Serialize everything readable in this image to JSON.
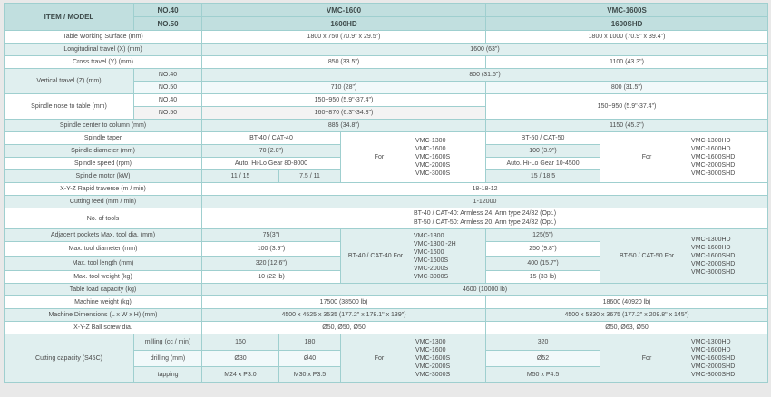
{
  "header": {
    "item_model": "ITEM / MODEL",
    "no40": "NO.40",
    "no50": "NO.50",
    "model_a": "VMC-1600",
    "model_a_hd": "1600HD",
    "model_b": "VMC-1600S",
    "model_b_hd": "1600SHD"
  },
  "rows": {
    "table_surface": {
      "label": "Table Working Surface (mm)",
      "a": "1800 x 750 (70.9\" x 29.5\")",
      "b": "1800 x 1000 (70.9\" x 39.4\")"
    },
    "longitudinal": {
      "label": "Longitudinal travel (X) (mm)",
      "value": "1600 (63\")"
    },
    "cross": {
      "label": "Cross travel (Y) (mm)",
      "a": "850 (33.5\")",
      "b": "1100 (43.3\")"
    },
    "vertical": {
      "label": "Vertical travel (Z) (mm)",
      "sub40": "NO.40",
      "sub50": "NO.50",
      "v40": "800 (31.5\")",
      "a50": "710 (28\")",
      "b50": "800 (31.5\")"
    },
    "nose": {
      "label": "Spindle nose to table (mm)",
      "sub40": "NO.40",
      "sub50": "NO.50",
      "a40": "150~950 (5.9\"-37.4\")",
      "a50": "160~870 (6.3\"-34.3\")",
      "b": "150~950 (5.9\"-37.4\")"
    },
    "center": {
      "label": "Spindle center to column (mm)",
      "a": "885 (34.8\")",
      "b": "1150 (45.3\")"
    },
    "taper": {
      "label": "Spindle taper",
      "a": "BT-40 / CAT-40",
      "b": "BT-50 / CAT-50"
    },
    "diameter": {
      "label": "Spindle diameter (mm)",
      "a": "70 (2.8\")",
      "b": "100 (3.9\")"
    },
    "speed": {
      "label": "Spindle speed (rpm)",
      "a": "Auto. Hi-Lo Gear 80-8000",
      "b": "Auto. Hi-Lo Gear 10-4500"
    },
    "motor": {
      "label": "Spindle motor (kW)",
      "a1": "11 / 15",
      "a2": "7.5 / 11",
      "b": "15 / 18.5"
    },
    "spindle_for": {
      "a_label": "For",
      "a_models": [
        "VMC-1300",
        "VMC-1600",
        "VMC-1600S",
        "VMC-2000S",
        "VMC-3000S"
      ],
      "b_label": "For",
      "b_models": [
        "VMC-1300HD",
        "VMC-1600HD",
        "VMC-1600SHD",
        "VMC-2000SHD",
        "VMC-3000SHD"
      ]
    },
    "rapid": {
      "label": "X-Y-Z Rapid traverse (m / min)",
      "value": "18-18-12"
    },
    "feed": {
      "label": "Cutting feed (mm / min)",
      "value": "1-12000"
    },
    "tools": {
      "label": "No. of tools",
      "line1": "BT-40 / CAT-40: Armless 24, Arm type 24/32 (Opt.)",
      "line2": "BT-50 / CAT-50: Armless 20, Arm type 24/32 (Opt.)"
    },
    "adjacent": {
      "label": "Adjacent pockets Max. tool dia. (mm)",
      "a": "75(3\")",
      "b": "125(5\")"
    },
    "tool_dia": {
      "label": "Max. tool diameter (mm)",
      "a": "100 (3.9\")",
      "b": "250 (9.8\")"
    },
    "tool_len": {
      "label": "Max. tool length (mm)",
      "a": "320 (12.6\")",
      "b": "400 (15.7\")"
    },
    "tool_wt": {
      "label": "Max. tool weight (kg)",
      "a": "10 (22 lb)",
      "b": "15 (33 lb)"
    },
    "tool_for": {
      "a_label": "BT-40 / CAT-40 For",
      "a_models": [
        "VMC-1300",
        "VMC-1300 -2H",
        "VMC-1600",
        "VMC-1600S",
        "VMC-2000S",
        "VMC-3000S"
      ],
      "b_label": "BT-50 / CAT-50 For",
      "b_models": [
        "VMC-1300HD",
        "VMC-1600HD",
        "VMC-1600SHD",
        "VMC-2000SHD",
        "VMC-3000SHD"
      ]
    },
    "table_load": {
      "label": "Table load capacity (kg)",
      "value": "4600 (10000 lb)"
    },
    "weight": {
      "label": "Machine weight (kg)",
      "a": "17500 (38500 lb)",
      "b": "18600 (40920 lb)"
    },
    "dimensions": {
      "label": "Machine Dimensions (L x W x H) (mm)",
      "a": "4500 x 4525 x 3535 (177.2\" x 178.1\" x 139\")",
      "b": "4500 x 5330 x 3675 (177.2\" x 209.8\" x 145\")"
    },
    "ballscrew": {
      "label": "X-Y-Z Ball screw dia.",
      "a": "Ø50, Ø50, Ø50",
      "b": "Ø50, Ø63, Ø50"
    },
    "cutting": {
      "label": "Cutting capacity (S45C)",
      "milling": {
        "label": "milling (cc / min)",
        "a1": "160",
        "a2": "180",
        "b": "320"
      },
      "drilling": {
        "label": "drilling (mm)",
        "a1": "Ø30",
        "a2": "Ø40",
        "b": "Ø52"
      },
      "tapping": {
        "label": "tapping",
        "a1": "M24 x P3.0",
        "a2": "M30 x P3.5",
        "b": "M50 x P4.5"
      },
      "a_label": "For",
      "a_models": [
        "VMC-1300",
        "VMC-1600",
        "VMC-1600S",
        "VMC-2000S",
        "VMC-3000S"
      ],
      "b_label": "For",
      "b_models": [
        "VMC-1300HD",
        "VMC-1600HD",
        "VMC-1600SHD",
        "VMC-2000SHD",
        "VMC-3000SHD"
      ]
    }
  }
}
